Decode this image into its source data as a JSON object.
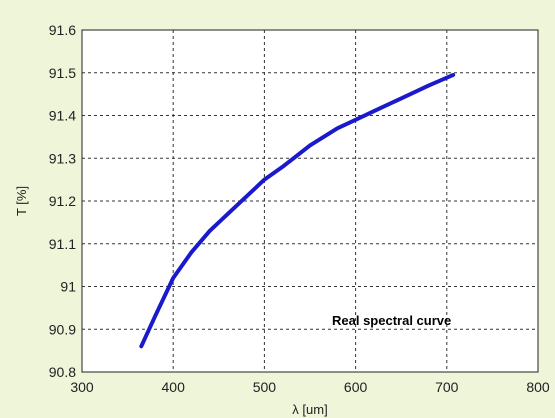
{
  "chart_data": {
    "type": "line",
    "title": "",
    "xlabel": "λ [um]",
    "ylabel": "T [%]",
    "xlim": [
      300,
      800
    ],
    "ylim": [
      90.8,
      91.6
    ],
    "xticks": [
      300,
      400,
      500,
      600,
      700,
      800
    ],
    "yticks": [
      90.8,
      90.9,
      91,
      91.1,
      91.2,
      91.3,
      91.4,
      91.5,
      91.6
    ],
    "xtick_labels": [
      "300",
      "400",
      "500",
      "600",
      "700",
      "800"
    ],
    "ytick_labels": [
      "90.8",
      "90.9",
      "91",
      "91.1",
      "91.2",
      "91.3",
      "91.4",
      "91.5",
      "91.6"
    ],
    "grid": true,
    "annotation": "Real spectral curve",
    "series": [
      {
        "color": "#1a1acc",
        "x": [
          365,
          380,
          400,
          420,
          440,
          460,
          480,
          500,
          520,
          550,
          580,
          600,
          620,
          650,
          680,
          707
        ],
        "y": [
          90.86,
          90.93,
          91.02,
          91.08,
          91.13,
          91.17,
          91.21,
          91.25,
          91.28,
          91.33,
          91.37,
          91.39,
          91.41,
          91.44,
          91.47,
          91.495
        ]
      }
    ]
  },
  "colors": {
    "background": "#eef5d9",
    "plot_area": "#ffffff",
    "grid": "#333333",
    "line": "#1a1acc"
  }
}
